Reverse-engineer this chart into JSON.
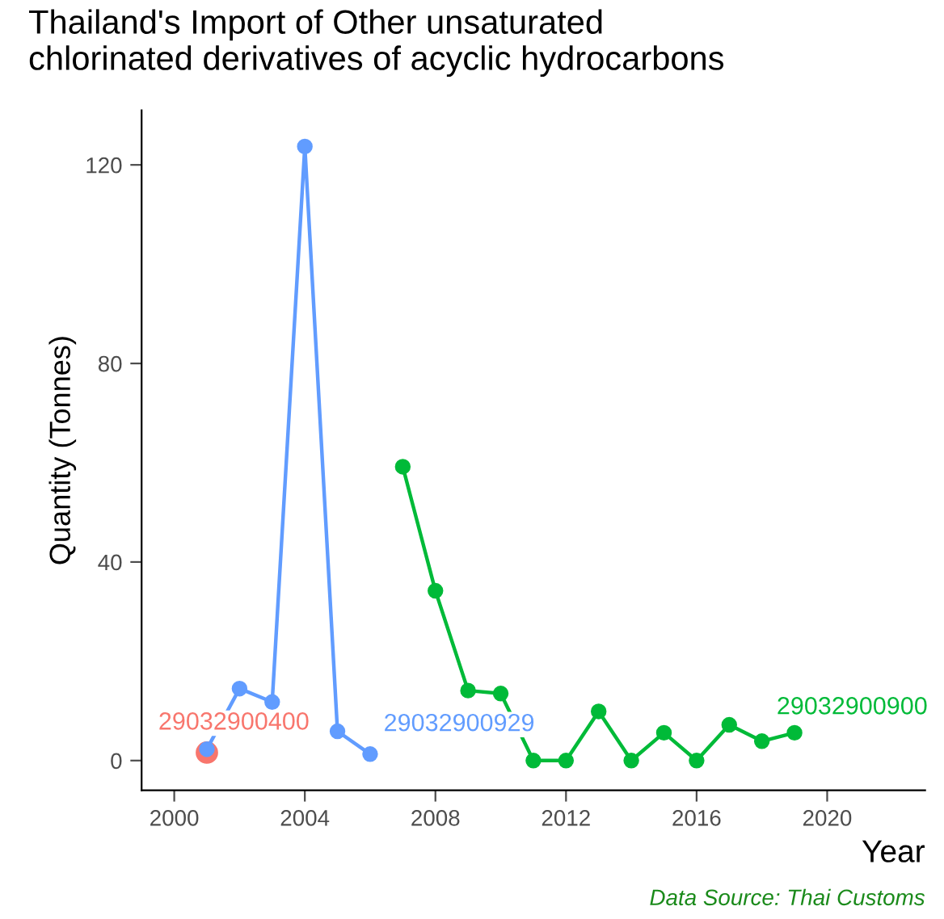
{
  "chart_data": {
    "type": "line",
    "title": "Thailand's Import of Other unsaturated\nchlorinated derivatives of acyclic hydrocarbons",
    "xlabel": "Year",
    "ylabel": "Quantity (Tonnes)",
    "marker": "circle",
    "grid": false,
    "legend": false,
    "xlim": [
      1999,
      2023
    ],
    "xticks": [
      2000,
      2004,
      2008,
      2012,
      2016,
      2020
    ],
    "ylim": [
      -6,
      131
    ],
    "yticks": [
      0,
      40,
      80,
      120
    ],
    "annotations": [
      "Data Source: Thai Customs"
    ],
    "series": [
      {
        "name": "29032900400",
        "color": "#f8766d",
        "x": [
          2001
        ],
        "values": [
          1.6
        ]
      },
      {
        "name": "29032900929",
        "color": "#619cff",
        "x": [
          2001,
          2002,
          2003,
          2004,
          2005,
          2006
        ],
        "values": [
          2.3,
          14.5,
          11.8,
          123.7,
          5.9,
          1.3
        ]
      },
      {
        "name": "29032900900",
        "color": "#00ba38",
        "x": [
          2007,
          2008,
          2009,
          2010,
          2011,
          2012,
          2013,
          2014,
          2015,
          2016,
          2017,
          2018,
          2019
        ],
        "values": [
          59.2,
          34.2,
          14.1,
          13.5,
          0,
          0,
          9.9,
          0,
          5.6,
          0,
          7.2,
          3.9,
          5.6
        ]
      }
    ]
  }
}
